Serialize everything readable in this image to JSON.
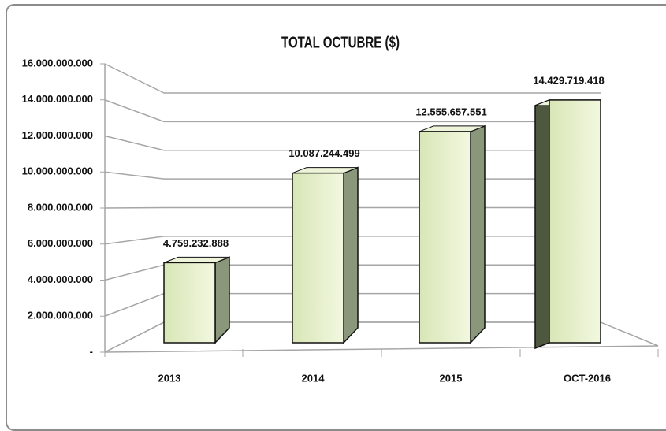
{
  "chart_data": {
    "type": "bar3d",
    "title": "TOTAL OCTUBRE ($)",
    "categories": [
      "2013",
      "2014",
      "2015",
      "OCT-2016"
    ],
    "values": [
      4759232888,
      10087244499,
      12555657551,
      14429719418
    ],
    "value_labels": [
      "4.759.232.888",
      "10.087.244.499",
      "12.555.657.551",
      "14.429.719.418"
    ],
    "color": "#e4efc8",
    "ylim": [
      0,
      16000000000
    ],
    "yticks": [
      {
        "value": 0,
        "label": "-"
      },
      {
        "value": 2000000000,
        "label": "2.000.000.000"
      },
      {
        "value": 4000000000,
        "label": "4.000.000.000"
      },
      {
        "value": 6000000000,
        "label": "6.000.000.000"
      },
      {
        "value": 8000000000,
        "label": "8.000.000.000"
      },
      {
        "value": 10000000000,
        "label": "10.000.000.000"
      },
      {
        "value": 12000000000,
        "label": "12.000.000.000"
      },
      {
        "value": 14000000000,
        "label": "14.000.000.000"
      },
      {
        "value": 16000000000,
        "label": "16.000.000.000"
      }
    ],
    "grid": true
  }
}
